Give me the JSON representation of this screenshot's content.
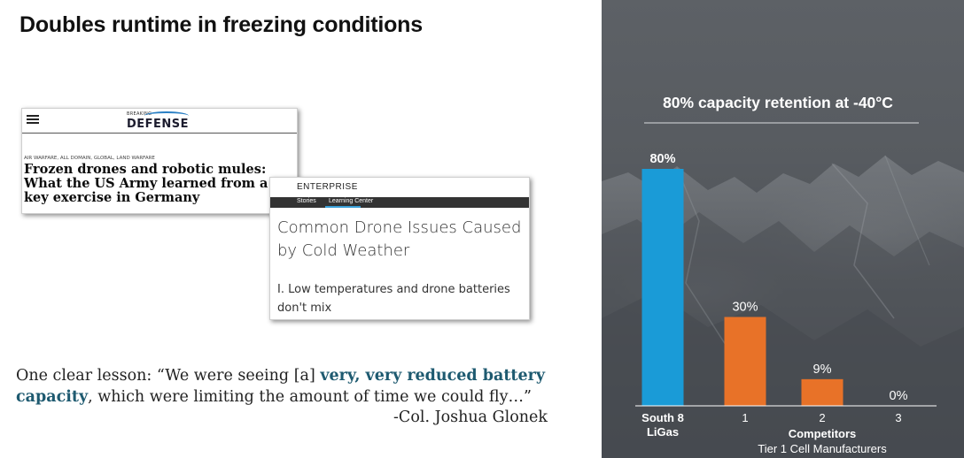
{
  "slide": {
    "title": "Doubles runtime in freezing conditions"
  },
  "clip1": {
    "logo_small": "BREAKING",
    "logo_main": "DEFENSE",
    "tags": "AIR WARFARE, ALL DOMAIN, GLOBAL, LAND WARFARE",
    "headline": "Frozen drones and robotic mules: What the US Army learned from a key exercise in Germany"
  },
  "clip2": {
    "brand": "ENTERPRISE",
    "nav_stories": "Stories",
    "nav_learning": "Learning Center",
    "title": "Common Drone Issues Caused by Cold Weather",
    "subtitle": "I. Low temperatures and drone batteries don't mix"
  },
  "quote": {
    "part1": "One clear lesson: “We were seeing [a] ",
    "highlight1": "very, very reduced battery",
    "highlight2": "capacity",
    "part2": ", which were limiting the amount of time we could fly…”",
    "attribution": "-Col. Joshua Glonek"
  },
  "colors": {
    "panel_bg": "#54585d",
    "south8_bar": "#1a9bd7",
    "competitor_bar": "#e87228",
    "highlight_text": "#1e5a70"
  },
  "chart_data": {
    "type": "bar",
    "title": "80% capacity retention at -40°C",
    "categories": [
      "South 8 LiGas",
      "1",
      "2",
      "3"
    ],
    "values": [
      80,
      30,
      9,
      0
    ],
    "data_labels": [
      "80%",
      "30%",
      "9%",
      "0%"
    ],
    "ylim": [
      0,
      80
    ],
    "grid": false,
    "group_label": "Competitors",
    "group_sublabel": "Tier 1 Cell Manufacturers",
    "category_lines": [
      [
        "South 8",
        "LiGas"
      ],
      [
        "1"
      ],
      [
        "2"
      ],
      [
        "3"
      ]
    ]
  }
}
